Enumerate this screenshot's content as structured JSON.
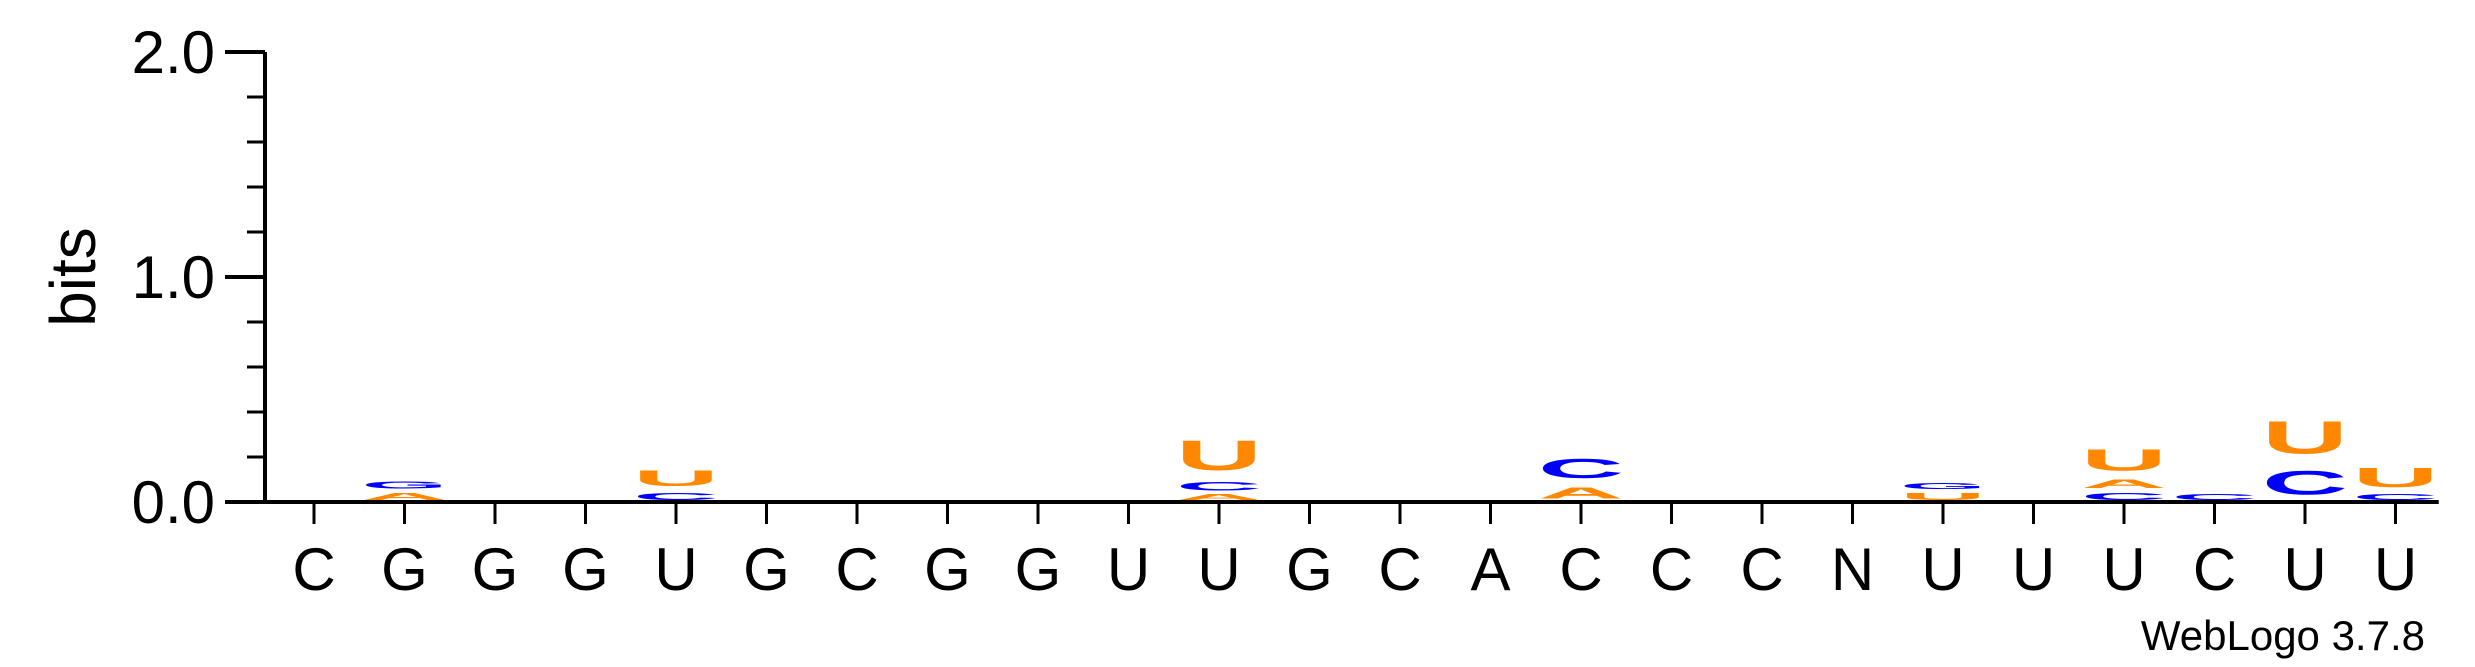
{
  "chart_data": {
    "type": "sequence-logo",
    "ylabel": "bits",
    "ylim": [
      0,
      2.0
    ],
    "yticks": [
      {
        "value": 0.0,
        "label": "0.0"
      },
      {
        "value": 1.0,
        "label": "1.0"
      },
      {
        "value": 2.0,
        "label": "2.0"
      }
    ],
    "positions": [
      "C",
      "G",
      "G",
      "G",
      "U",
      "G",
      "C",
      "G",
      "G",
      "U",
      "U",
      "G",
      "C",
      "A",
      "C",
      "C",
      "C",
      "N",
      "U",
      "U",
      "U",
      "C",
      "U",
      "U"
    ],
    "colors": {
      "U": "#FF8800",
      "A": "#FF8800",
      "C": "#0000FF",
      "G": "#0000FF"
    },
    "stacks": [
      [],
      [
        {
          "letter": "A",
          "height": 0.05
        },
        {
          "letter": "G",
          "height": 0.05
        }
      ],
      [
        {
          "letter": "G",
          "height": 0.01
        }
      ],
      [
        {
          "letter": "G",
          "height": 0.01
        }
      ],
      [
        {
          "letter": "C",
          "height": 0.05
        },
        {
          "letter": "U",
          "height": 0.11
        }
      ],
      [
        {
          "letter": "G",
          "height": 0.01
        }
      ],
      [
        {
          "letter": "G",
          "height": 0.01
        }
      ],
      [
        {
          "letter": "U",
          "height": 0.005
        }
      ],
      [],
      [],
      [
        {
          "letter": "A",
          "height": 0.04
        },
        {
          "letter": "C",
          "height": 0.06
        },
        {
          "letter": "U",
          "height": 0.21
        }
      ],
      [],
      [],
      [
        {
          "letter": "U",
          "height": 0.005
        }
      ],
      [
        {
          "letter": "A",
          "height": 0.08
        },
        {
          "letter": "C",
          "height": 0.14
        }
      ],
      [],
      [],
      [],
      [
        {
          "letter": "U",
          "height": 0.05
        },
        {
          "letter": "G",
          "height": 0.04
        }
      ],
      [],
      [
        {
          "letter": "C",
          "height": 0.05
        },
        {
          "letter": "A",
          "height": 0.06
        },
        {
          "letter": "U",
          "height": 0.15
        }
      ],
      [
        {
          "letter": "C",
          "height": 0.04
        }
      ],
      [
        {
          "letter": "C",
          "height": 0.17
        },
        {
          "letter": "U",
          "height": 0.23
        }
      ],
      [
        {
          "letter": "C",
          "height": 0.04
        },
        {
          "letter": "U",
          "height": 0.14
        }
      ]
    ]
  },
  "watermark": "WebLogo 3.7.8"
}
